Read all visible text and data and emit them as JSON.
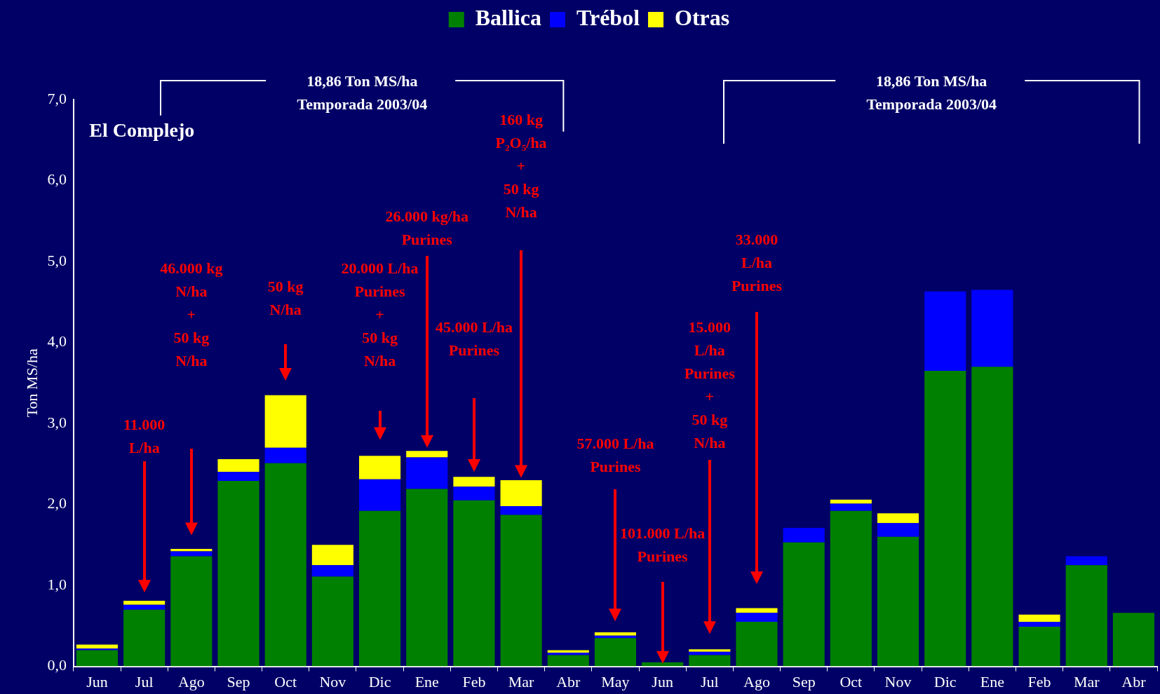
{
  "chart_data": {
    "type": "bar",
    "stacked": true,
    "ylabel": "Ton MS/ha",
    "categories": [
      "Jun",
      "Jul",
      "Ago",
      "Sep",
      "Oct",
      "Nov",
      "Dic",
      "Ene",
      "Feb",
      "Mar",
      "Abr",
      "May",
      "Jun",
      "Jul",
      "Ago",
      "Sep",
      "Oct",
      "Nov",
      "Dic",
      "Ene",
      "Feb",
      "Mar",
      "Abr"
    ],
    "series": [
      {
        "name": "Ballica",
        "color": "#008000",
        "values": [
          0.2,
          0.7,
          1.36,
          2.29,
          2.51,
          1.11,
          1.92,
          2.19,
          2.05,
          1.87,
          0.14,
          0.35,
          0.05,
          0.14,
          0.55,
          1.53,
          1.92,
          1.6,
          3.65,
          3.7,
          0.49,
          1.25,
          0.66
        ]
      },
      {
        "name": "Trébol",
        "color": "#0000ff",
        "values": [
          0.02,
          0.06,
          0.06,
          0.11,
          0.19,
          0.14,
          0.39,
          0.39,
          0.17,
          0.11,
          0.03,
          0.03,
          0,
          0.04,
          0.11,
          0.18,
          0.09,
          0.17,
          0.98,
          0.95,
          0.06,
          0.11,
          0
        ]
      },
      {
        "name": "Otras",
        "color": "#ffff00",
        "values": [
          0.05,
          0.05,
          0.03,
          0.16,
          0.65,
          0.25,
          0.29,
          0.08,
          0.12,
          0.32,
          0.03,
          0.04,
          0,
          0.03,
          0.06,
          0,
          0.05,
          0.12,
          0,
          0,
          0.09,
          0,
          0
        ]
      }
    ],
    "ylim": [
      0,
      7
    ],
    "yticks": [
      {
        "value": 0,
        "label": "0,0"
      },
      {
        "value": 1,
        "label": "1,0"
      },
      {
        "value": 2,
        "label": "2,0"
      },
      {
        "value": 3,
        "label": "3,0"
      },
      {
        "value": 4,
        "label": "4,0"
      },
      {
        "value": 5,
        "label": "5,0"
      },
      {
        "value": 6,
        "label": "6,0"
      },
      {
        "value": 7,
        "label": "7,0"
      }
    ],
    "legend": "top",
    "annotations": [
      "El Complejo",
      "18,86 Ton MS/ha\nTemporada 2003/04",
      "18,86 Ton MS/ha\nTemporada 2003/04",
      "11.000\nL/ha",
      "46.000 kg\nN/ha\n+\n50 kg\nN/ha",
      "50 kg\nN/ha",
      "20.000 L/ha\nPurines\n+\n50 kg\nN/ha",
      "26.000 kg/ha\nPurines",
      "45.000 L/ha\nPurines",
      "160 kg\nP₂O₅/ha\n+\n50 kg\nN/ha",
      "57.000 L/ha\nPurines",
      "101.000 L/ha\nPurines",
      "15.000\nL/ha\nPurines\n+\n50 kg\nN/ha",
      "33.000\nL/ha\nPurines"
    ]
  }
}
